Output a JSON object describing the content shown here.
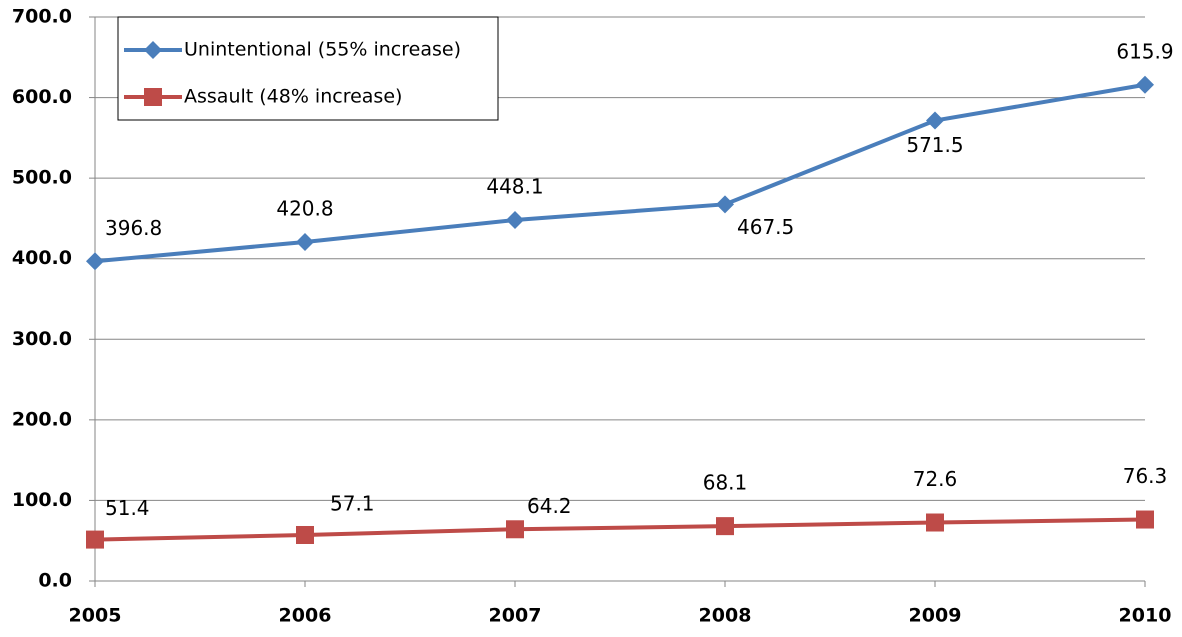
{
  "chart_data": {
    "type": "line",
    "categories": [
      "2005",
      "2006",
      "2007",
      "2008",
      "2009",
      "2010"
    ],
    "series": [
      {
        "name": "Unintentional (55% increase)",
        "color": "#4a7ebb",
        "marker": "diamond",
        "values": [
          396.8,
          420.8,
          448.1,
          467.5,
          571.5,
          615.9
        ]
      },
      {
        "name": "Assault (48% increase)",
        "color": "#be4b48",
        "marker": "square",
        "values": [
          51.4,
          57.1,
          64.2,
          68.1,
          72.6,
          76.3
        ]
      }
    ],
    "ylim": [
      0,
      700
    ],
    "yticks": [
      {
        "value": 0,
        "label": "0.0"
      },
      {
        "value": 100,
        "label": "100.0"
      },
      {
        "value": 200,
        "label": "200.0"
      },
      {
        "value": 300,
        "label": "300.0"
      },
      {
        "value": 400,
        "label": "400.0"
      },
      {
        "value": 500,
        "label": "500.0"
      },
      {
        "value": 600,
        "label": "600.0"
      },
      {
        "value": 700,
        "label": "700.0"
      }
    ],
    "grid": true,
    "legend": "top-left"
  }
}
